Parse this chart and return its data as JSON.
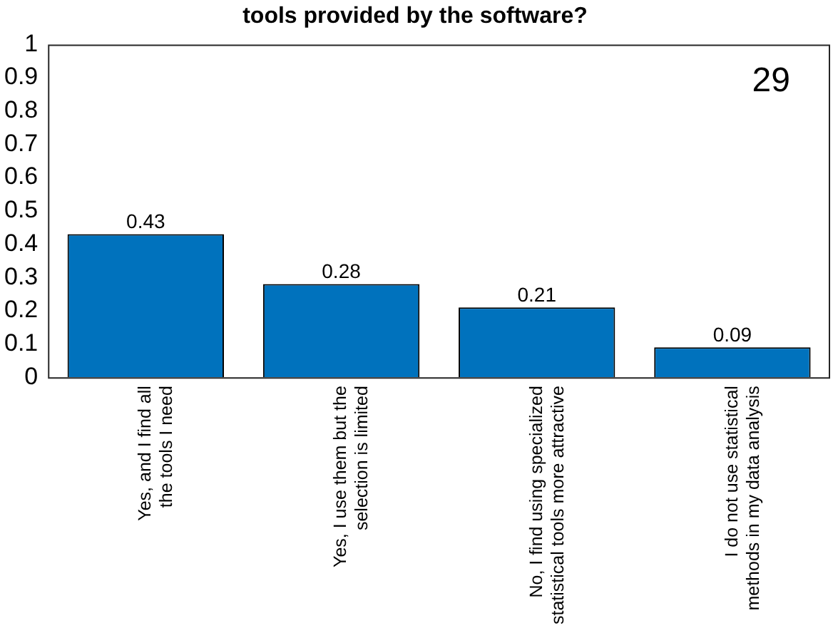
{
  "chart_data": {
    "type": "bar",
    "title": "tools provided by the software?",
    "categories": [
      "Yes, and I find all the tools I need",
      "Yes, I use them but the selection is limited",
      "No, I find using specialized statistical tools more attractive",
      "I do not use statistical methods in my data analysis"
    ],
    "values": [
      0.43,
      0.28,
      0.21,
      0.09
    ],
    "color": "#0072bd",
    "ylim": [
      0,
      1
    ],
    "yticks": [
      0,
      0.1,
      0.2,
      0.3,
      0.4,
      0.5,
      0.6,
      0.7,
      0.8,
      0.9,
      1
    ],
    "grid": false,
    "legend": false,
    "data_labels": true,
    "annotations": [
      "29"
    ]
  }
}
